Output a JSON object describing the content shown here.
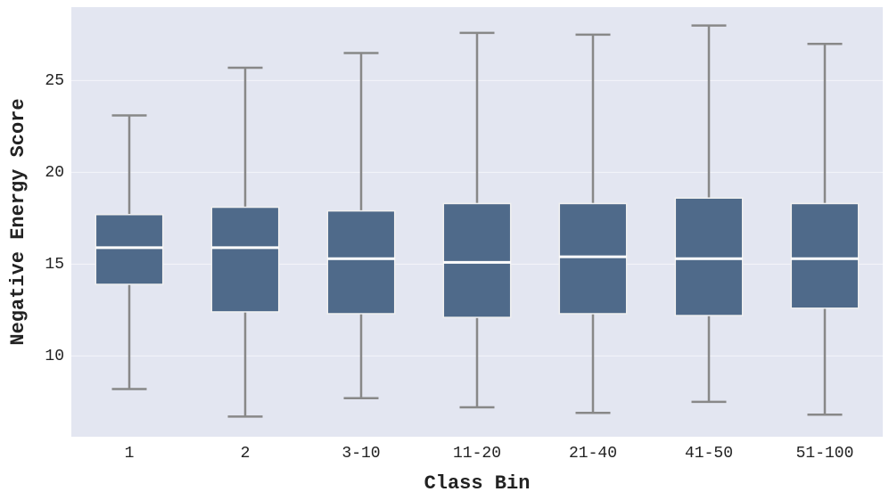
{
  "chart_data": {
    "type": "box",
    "x_label": "Class Bin",
    "y_label": "Negative Energy Score",
    "categories": [
      "1",
      "2",
      "3-10",
      "11-20",
      "21-40",
      "41-50",
      "51-100"
    ],
    "low": [
      8.2,
      6.7,
      7.7,
      7.2,
      6.9,
      7.5,
      6.8
    ],
    "q1": [
      13.9,
      12.4,
      12.3,
      12.1,
      12.3,
      12.2,
      12.6
    ],
    "median": [
      15.9,
      15.9,
      15.3,
      15.1,
      15.4,
      15.3,
      15.3
    ],
    "q3": [
      17.7,
      18.1,
      17.9,
      18.3,
      18.3,
      18.6,
      18.3
    ],
    "high": [
      23.1,
      25.7,
      26.5,
      27.6,
      27.5,
      28.0,
      27.0
    ],
    "color": "#4f6a8a",
    "whisker_color": "#888888",
    "median_color": "#ffffff",
    "ylim": [
      5.6,
      29.0
    ],
    "yticks": [
      10,
      15,
      20,
      25
    ],
    "grid": true
  }
}
